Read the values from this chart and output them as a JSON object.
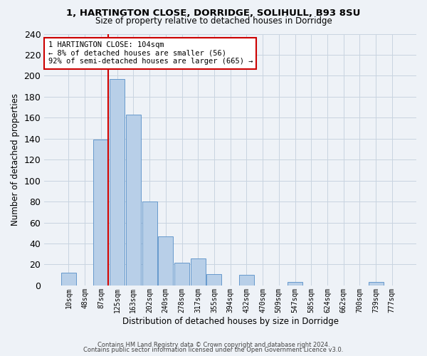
{
  "title1": "1, HARTINGTON CLOSE, DORRIDGE, SOLIHULL, B93 8SU",
  "title2": "Size of property relative to detached houses in Dorridge",
  "xlabel": "Distribution of detached houses by size in Dorridge",
  "ylabel": "Number of detached properties",
  "bar_labels": [
    "10sqm",
    "48sqm",
    "87sqm",
    "125sqm",
    "163sqm",
    "202sqm",
    "240sqm",
    "278sqm",
    "317sqm",
    "355sqm",
    "394sqm",
    "432sqm",
    "470sqm",
    "509sqm",
    "547sqm",
    "585sqm",
    "624sqm",
    "662sqm",
    "700sqm",
    "739sqm",
    "777sqm"
  ],
  "bar_values": [
    12,
    0,
    139,
    197,
    163,
    80,
    47,
    22,
    26,
    11,
    0,
    10,
    0,
    0,
    3,
    0,
    0,
    0,
    0,
    3,
    0
  ],
  "bar_color": "#b8cfe8",
  "bar_edge_color": "#6699cc",
  "bg_color": "#eef2f7",
  "grid_color": "#c8d4e0",
  "annotation_title": "1 HARTINGTON CLOSE: 104sqm",
  "annotation_line1": "← 8% of detached houses are smaller (56)",
  "annotation_line2": "92% of semi-detached houses are larger (665) →",
  "annotation_box_color": "#ffffff",
  "annotation_box_edge": "#cc0000",
  "red_line_color": "#cc0000",
  "footer1": "Contains HM Land Registry data © Crown copyright and database right 2024.",
  "footer2": "Contains public sector information licensed under the Open Government Licence v3.0.",
  "ylim": [
    0,
    240
  ],
  "yticks": [
    0,
    20,
    40,
    60,
    80,
    100,
    120,
    140,
    160,
    180,
    200,
    220,
    240
  ],
  "red_line_x": 2.46
}
